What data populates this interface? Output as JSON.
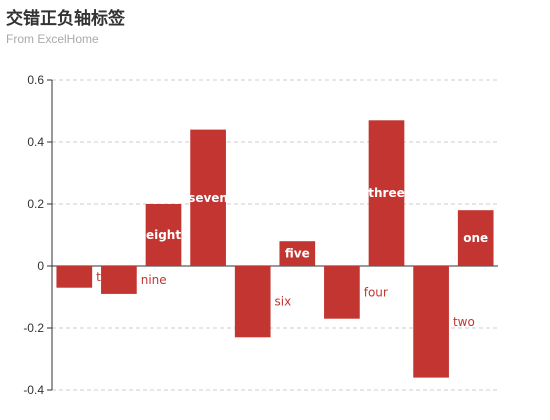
{
  "title": "交错正负轴标签",
  "subtitle": "From ExcelHome",
  "colors": {
    "bar": "#c23531",
    "grid": "#cccccc",
    "axis": "#333333",
    "inside_label": "#ffffff"
  },
  "chart_data": {
    "type": "bar",
    "title": "交错正负轴标签",
    "subtitle": "From ExcelHome",
    "categories": [
      "ten",
      "nine",
      "eight",
      "seven",
      "six",
      "five",
      "four",
      "three",
      "two",
      "one"
    ],
    "values": [
      -0.07,
      -0.09,
      0.2,
      0.44,
      -0.23,
      0.08,
      -0.17,
      0.47,
      -0.36,
      0.18
    ],
    "ylim": [
      -0.4,
      0.6
    ],
    "yticks": [
      -0.4,
      -0.2,
      0,
      0.2,
      0.4,
      0.6
    ],
    "ytick_labels": [
      "-0.4",
      "-0.2",
      "0",
      "0.2",
      "0.4",
      "0.6"
    ],
    "grid": true,
    "grid_style": "dashed",
    "label_rule": "positive values labeled inside bar, negative values labeled to the right of bar",
    "visible_labels": [
      "t",
      "nine",
      "eight",
      "seven",
      "six",
      "five",
      "four",
      "three",
      "two",
      "one"
    ]
  }
}
